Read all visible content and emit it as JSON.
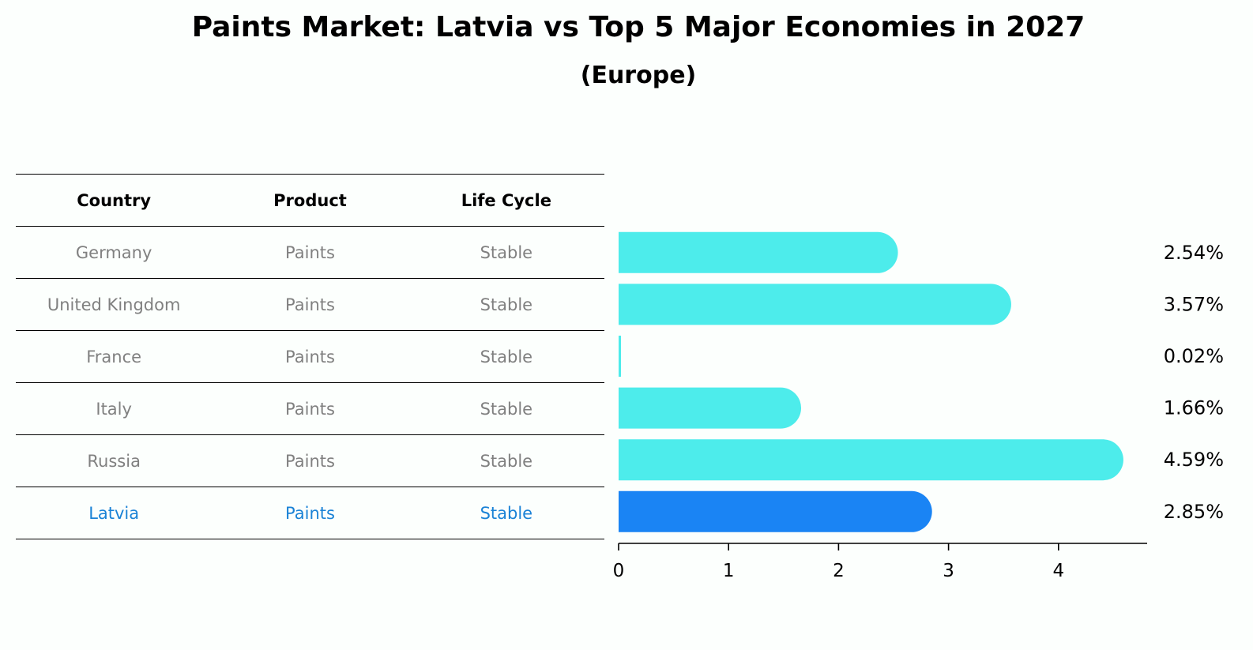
{
  "title": "Paints Market: Latvia vs Top 5 Major Economies in 2027",
  "subtitle": "(Europe)",
  "table": {
    "headers": [
      "Country",
      "Product",
      "Life Cycle"
    ],
    "rows": [
      {
        "country": "Germany",
        "product": "Paints",
        "life_cycle": "Stable"
      },
      {
        "country": "United Kingdom",
        "product": "Paints",
        "life_cycle": "Stable"
      },
      {
        "country": "France",
        "product": "Paints",
        "life_cycle": "Stable"
      },
      {
        "country": "Italy",
        "product": "Paints",
        "life_cycle": "Stable"
      },
      {
        "country": "Russia",
        "product": "Paints",
        "life_cycle": "Stable"
      },
      {
        "country": "Latvia",
        "product": "Paints",
        "life_cycle": "Stable"
      }
    ]
  },
  "chart_data": {
    "type": "bar",
    "orientation": "horizontal",
    "categories": [
      "Germany",
      "United Kingdom",
      "France",
      "Italy",
      "Russia",
      "Latvia"
    ],
    "values": [
      2.54,
      3.57,
      0.02,
      1.66,
      4.59,
      2.85
    ],
    "value_labels": [
      "2.54%",
      "3.57%",
      "0.02%",
      "1.66%",
      "4.59%",
      "2.85%"
    ],
    "highlight": "Latvia",
    "xticks": [
      0,
      1,
      2,
      3,
      4
    ],
    "xlim": [
      0,
      4.8
    ],
    "colors": {
      "default": "#4deceb",
      "highlight": "#1a84f4"
    }
  },
  "colors": {
    "background": "#fcfffd",
    "highlight_text": "#1a82d6",
    "muted_text": "#808080"
  }
}
